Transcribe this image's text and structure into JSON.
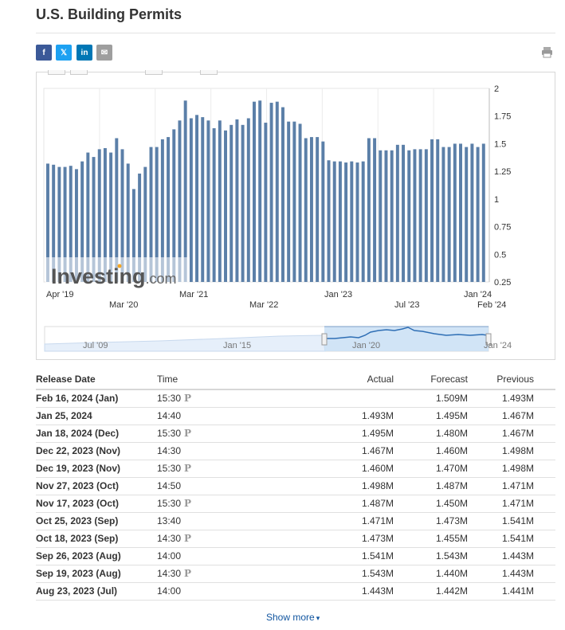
{
  "page": {
    "title": "U.S. Building Permits"
  },
  "share": {
    "facebook": "f",
    "twitter": "𝕏",
    "linkedin": "in",
    "email": "✉"
  },
  "icons": {
    "print": "printer-icon"
  },
  "colors": {
    "bar": "#5b7fa8",
    "green": "#0ea600",
    "red": "#e60000",
    "navigator": "#c9dff5"
  },
  "chart_data": {
    "type": "bar",
    "y_ticks": [
      "2",
      "1.75",
      "1.5",
      "1.25",
      "1",
      "0.75",
      "0.5",
      "0.25"
    ],
    "ylim": [
      0.25,
      2.0
    ],
    "x_ticks_top": [
      "Apr '19",
      "Mar '21",
      "Jan '23",
      "Jan '24"
    ],
    "x_ticks_bottom": [
      "Mar '20",
      "Mar '22",
      "Jul '23",
      "Feb '24"
    ],
    "values": [
      1.32,
      1.31,
      1.29,
      1.29,
      1.3,
      1.27,
      1.34,
      1.42,
      1.38,
      1.45,
      1.46,
      1.42,
      1.55,
      1.45,
      1.32,
      1.09,
      1.23,
      1.29,
      1.47,
      1.47,
      1.54,
      1.56,
      1.63,
      1.71,
      1.89,
      1.73,
      1.76,
      1.74,
      1.71,
      1.64,
      1.71,
      1.62,
      1.67,
      1.72,
      1.67,
      1.73,
      1.88,
      1.89,
      1.69,
      1.87,
      1.88,
      1.83,
      1.7,
      1.7,
      1.68,
      1.55,
      1.56,
      1.56,
      1.52,
      1.35,
      1.34,
      1.34,
      1.33,
      1.34,
      1.33,
      1.34,
      1.55,
      1.55,
      1.44,
      1.44,
      1.44,
      1.49,
      1.49,
      1.44,
      1.45,
      1.45,
      1.45,
      1.54,
      1.54,
      1.47,
      1.47,
      1.5,
      1.5,
      1.47,
      1.5,
      1.47,
      1.5
    ],
    "watermark": "Investing.com",
    "navigator": {
      "labels": [
        "Jul '09",
        "Jan '15",
        "Jan '20",
        "Jan '24"
      ]
    }
  },
  "table": {
    "headers": {
      "date": "Release Date",
      "time": "Time",
      "actual": "Actual",
      "forecast": "Forecast",
      "previous": "Previous"
    },
    "rows": [
      {
        "date": "Feb 16, 2024 (Jan)",
        "time": "15:30",
        "prelim": true,
        "actual": "",
        "actual_color": "",
        "forecast": "1.509M",
        "previous": "1.493M"
      },
      {
        "date": "Jan 25, 2024",
        "time": "14:40",
        "prelim": false,
        "actual": "1.493M",
        "actual_color": "red",
        "forecast": "1.495M",
        "previous": "1.467M"
      },
      {
        "date": "Jan 18, 2024 (Dec)",
        "time": "15:30",
        "prelim": true,
        "actual": "1.495M",
        "actual_color": "green",
        "forecast": "1.480M",
        "previous": "1.467M"
      },
      {
        "date": "Dec 22, 2023 (Nov)",
        "time": "14:30",
        "prelim": false,
        "actual": "1.467M",
        "actual_color": "green",
        "forecast": "1.460M",
        "previous": "1.498M"
      },
      {
        "date": "Dec 19, 2023 (Nov)",
        "time": "15:30",
        "prelim": true,
        "actual": "1.460M",
        "actual_color": "red",
        "forecast": "1.470M",
        "previous": "1.498M"
      },
      {
        "date": "Nov 27, 2023 (Oct)",
        "time": "14:50",
        "prelim": false,
        "actual": "1.498M",
        "actual_color": "green",
        "forecast": "1.487M",
        "previous": "1.471M"
      },
      {
        "date": "Nov 17, 2023 (Oct)",
        "time": "15:30",
        "prelim": true,
        "actual": "1.487M",
        "actual_color": "green",
        "forecast": "1.450M",
        "previous": "1.471M"
      },
      {
        "date": "Oct 25, 2023 (Sep)",
        "time": "13:40",
        "prelim": false,
        "actual": "1.471M",
        "actual_color": "red",
        "forecast": "1.473M",
        "previous": "1.541M"
      },
      {
        "date": "Oct 18, 2023 (Sep)",
        "time": "14:30",
        "prelim": true,
        "actual": "1.473M",
        "actual_color": "green",
        "forecast": "1.455M",
        "previous": "1.541M"
      },
      {
        "date": "Sep 26, 2023 (Aug)",
        "time": "14:00",
        "prelim": false,
        "actual": "1.541M",
        "actual_color": "red",
        "forecast": "1.543M",
        "previous": "1.443M"
      },
      {
        "date": "Sep 19, 2023 (Aug)",
        "time": "14:30",
        "prelim": true,
        "actual": "1.543M",
        "actual_color": "green",
        "forecast": "1.440M",
        "previous": "1.443M"
      },
      {
        "date": "Aug 23, 2023 (Jul)",
        "time": "14:00",
        "prelim": false,
        "actual": "1.443M",
        "actual_color": "green",
        "forecast": "1.442M",
        "previous": "1.441M"
      }
    ],
    "prelim_symbol": "P"
  },
  "show_more": {
    "label": "Show more"
  }
}
